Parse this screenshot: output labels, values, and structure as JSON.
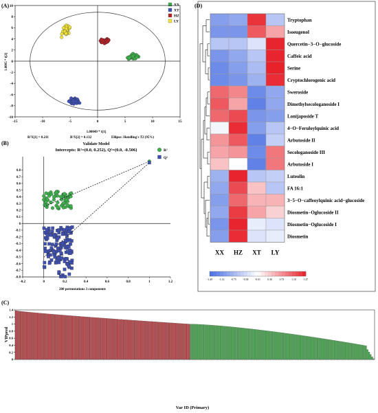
{
  "chart_data": [
    {
      "panel": "(A)",
      "type": "scatter",
      "xlabel": "1.00049 * t[1]",
      "ylabel": "1.0005 * t[2]",
      "xlim": [
        -15,
        15
      ],
      "ylim": [
        -10,
        10
      ],
      "xticks": [
        "-15",
        "-10",
        "-5",
        "0",
        "5",
        "10",
        "15"
      ],
      "yticks": [
        "-10",
        "-8",
        "-6",
        "-4",
        "-2",
        "0",
        "2",
        "4",
        "6",
        "8",
        "10"
      ],
      "legend": [
        {
          "name": "XX",
          "color": "#3cb04a"
        },
        {
          "name": "XT",
          "color": "#3e50b4"
        },
        {
          "name": "HZ",
          "color": "#b52025"
        },
        {
          "name": "LY",
          "color": "#f2e33a"
        }
      ],
      "clusters": [
        {
          "group": "LY",
          "center": [
            -5.8,
            5.5
          ],
          "spread": [
            0.9,
            1.4
          ],
          "n": 40
        },
        {
          "group": "HZ",
          "center": [
            1.3,
            3.6
          ],
          "spread": [
            1.2,
            0.5
          ],
          "n": 40
        },
        {
          "group": "XX",
          "center": [
            6.5,
            0.8
          ],
          "spread": [
            1.4,
            0.8
          ],
          "n": 40
        },
        {
          "group": "XT",
          "center": [
            -4.2,
            -7.2
          ],
          "spread": [
            1.2,
            0.7
          ],
          "n": 40
        }
      ],
      "footer": [
        "R²X[1] = 0.211",
        "R²X[2] = 0.132",
        "Ellipse: Hotelling's T2 (95%)"
      ]
    },
    {
      "panel": "(B)",
      "type": "scatter",
      "title": "Validate Model",
      "subtitle": "Intercepts: R²=(0.0, 0.252), Q²=(0.0, -0.506)",
      "xlabel": "200 permutations 3 components",
      "xlim": [
        -0.2,
        1.2
      ],
      "ylim": [
        -0.8,
        1.0
      ],
      "xticks": [
        "-0.2",
        "0",
        "0.2",
        "0.4",
        "0.6",
        "0.8",
        "1",
        "1.2"
      ],
      "yticks": [
        "-0.8",
        "-0.7",
        "-0.6",
        "-0.5",
        "-0.4",
        "-0.3",
        "-0.2",
        "-0.1",
        "0",
        "0.1",
        "0.2",
        "0.3",
        "0.4",
        "0.5",
        "0.6",
        "0.7",
        "0.8"
      ],
      "legend": [
        {
          "name": "R²",
          "color": "#3cb04a"
        },
        {
          "name": "Q²",
          "color": "#3e50b4"
        }
      ],
      "original": {
        "x": 1.0,
        "R2": 0.93,
        "Q2": 0.91
      },
      "lines": [
        {
          "series": "R²",
          "from": [
            0.0,
            0.252
          ],
          "to": [
            1.0,
            0.93
          ]
        },
        {
          "series": "Q²",
          "from": [
            0.0,
            -0.506
          ],
          "to": [
            1.0,
            0.91
          ]
        }
      ],
      "permuted": {
        "R2": {
          "x_range": [
            0.0,
            0.27
          ],
          "y_range": [
            0.22,
            0.48
          ],
          "n": 200
        },
        "Q2": {
          "x_range": [
            0.0,
            0.27
          ],
          "y_range": [
            -0.8,
            -0.05
          ],
          "n": 200
        }
      }
    },
    {
      "panel": "(C)",
      "type": "bar",
      "xlabel": "Var ID (Primary)",
      "ylabel": "VIPpred",
      "ylim": [
        0,
        1.4
      ],
      "yticks": [
        "0",
        "0.2",
        "0.4",
        "0.6",
        "0.8",
        "1",
        "1.2",
        "1.4"
      ],
      "bar_count": 230,
      "red_count": 112,
      "max_value": 1.38,
      "threshold": 1.0,
      "min_value": 0.02,
      "colors": {
        "above": "#b8484b",
        "below": "#4ba552"
      }
    },
    {
      "panel": "(D)",
      "type": "heatmap",
      "columns": [
        "XX",
        "HZ",
        "XT",
        "LY"
      ],
      "rows": [
        {
          "name": "Tryptophan",
          "values": [
            -1.0,
            -0.9,
            1.35,
            -0.6
          ]
        },
        {
          "name": "Isoeugenol",
          "values": [
            -1.1,
            -1.1,
            1.1,
            0.6
          ]
        },
        {
          "name": "Quercetin−3−O−glucoside",
          "values": [
            -0.6,
            -0.6,
            -0.3,
            1.45
          ]
        },
        {
          "name": "Caffeic acid",
          "values": [
            -1.1,
            -0.9,
            -0.6,
            1.45
          ]
        },
        {
          "name": "Serine",
          "values": [
            -1.2,
            -1.0,
            -0.7,
            1.47
          ]
        },
        {
          "name": "Cryptochlorogenic acid",
          "values": [
            -1.2,
            -1.1,
            -0.8,
            1.4
          ]
        },
        {
          "name": "Sweroside",
          "values": [
            1.0,
            0.8,
            -1.2,
            -0.9
          ]
        },
        {
          "name": "Dimethylsecologanoside I",
          "values": [
            1.1,
            0.6,
            -1.3,
            -0.9
          ]
        },
        {
          "name": "Lonijaposide T",
          "values": [
            1.0,
            1.2,
            -1.1,
            -1.0
          ]
        },
        {
          "name": "4−O−Feruloylquinic acid",
          "values": [
            -0.1,
            1.4,
            -1.0,
            -0.6
          ]
        },
        {
          "name": "Arbutoside II",
          "values": [
            0.7,
            1.1,
            -1.3,
            -0.5
          ]
        },
        {
          "name": "Secologanoside III",
          "values": [
            0.6,
            0.7,
            -1.2,
            0.9
          ]
        },
        {
          "name": "Arbutoside I",
          "values": [
            0.4,
            0.0,
            -1.3,
            0.9
          ]
        },
        {
          "name": "Luteolin",
          "values": [
            -0.8,
            1.45,
            -0.6,
            -0.5
          ]
        },
        {
          "name": "FA 16:1",
          "values": [
            -0.9,
            1.2,
            0.4,
            -0.6
          ]
        },
        {
          "name": "3−5−O−caffeoylquinic acid−glucoside",
          "values": [
            -1.0,
            1.0,
            0.5,
            0.5
          ]
        },
        {
          "name": "Diosmetin−Oglucoside II",
          "values": [
            -0.9,
            1.3,
            0.6,
            0.3
          ]
        },
        {
          "name": "Diosmetin−Oglucoside I",
          "values": [
            -1.1,
            1.45,
            -0.2,
            -0.3
          ]
        },
        {
          "name": "Diosmetin",
          "values": [
            -1.0,
            1.4,
            -0.3,
            -0.2
          ]
        }
      ],
      "legend_ticks": [
        "-1.49",
        "-1.12",
        "-0.75",
        "-0.38",
        "-0.01",
        "0.36",
        "0.73",
        "1.10",
        "1.47"
      ],
      "color_range": [
        -1.49,
        1.47
      ],
      "colors": {
        "low": "#4a6fe3",
        "mid": "#ffffff",
        "high": "#e8222b"
      }
    }
  ]
}
